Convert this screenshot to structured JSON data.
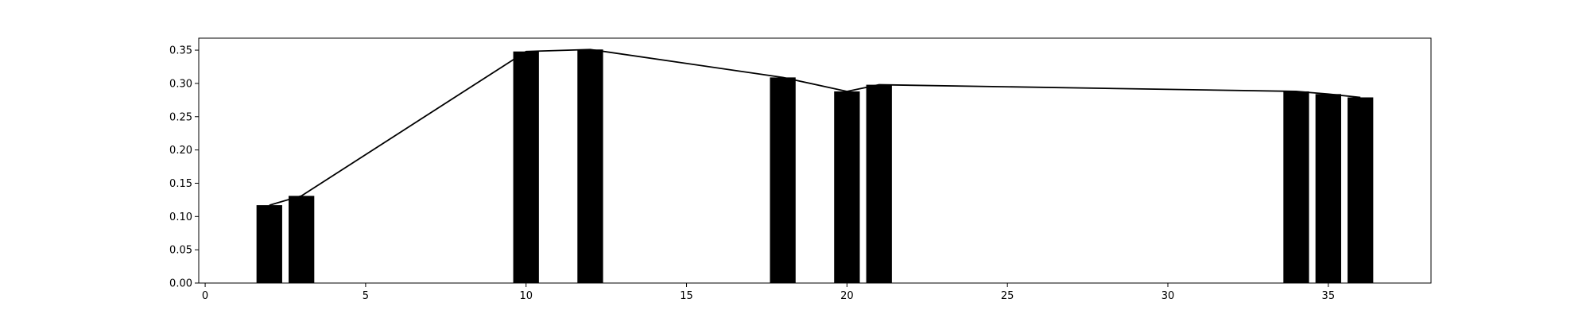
{
  "chart_data": {
    "type": "bar",
    "title": "",
    "xlabel": "",
    "ylabel": "",
    "xlim": [
      -0.2,
      38.2
    ],
    "ylim": [
      0,
      0.368
    ],
    "grid": false,
    "legend": "none",
    "bar_width": 0.8,
    "bar_color": "#000000",
    "line_color": "#000000",
    "x_ticks": [
      0,
      5,
      10,
      15,
      20,
      25,
      30,
      35
    ],
    "x_tick_labels": [
      "0",
      "5",
      "10",
      "15",
      "20",
      "25",
      "30",
      "35"
    ],
    "y_ticks": [
      0.0,
      0.05,
      0.1,
      0.15,
      0.2,
      0.25,
      0.3,
      0.35
    ],
    "y_tick_labels": [
      "0.00",
      "0.05",
      "0.10",
      "0.15",
      "0.20",
      "0.25",
      "0.30",
      "0.35"
    ],
    "series": [
      {
        "type": "bar",
        "x": [
          2,
          3,
          10,
          12,
          18,
          20,
          21,
          34,
          35,
          36
        ],
        "values": [
          0.117,
          0.131,
          0.348,
          0.351,
          0.309,
          0.288,
          0.298,
          0.288,
          0.284,
          0.279
        ]
      },
      {
        "type": "line",
        "x": [
          2,
          3,
          10,
          12,
          18,
          20,
          21,
          34,
          35,
          36
        ],
        "values": [
          0.117,
          0.131,
          0.348,
          0.351,
          0.309,
          0.288,
          0.298,
          0.288,
          0.284,
          0.279
        ]
      }
    ]
  }
}
